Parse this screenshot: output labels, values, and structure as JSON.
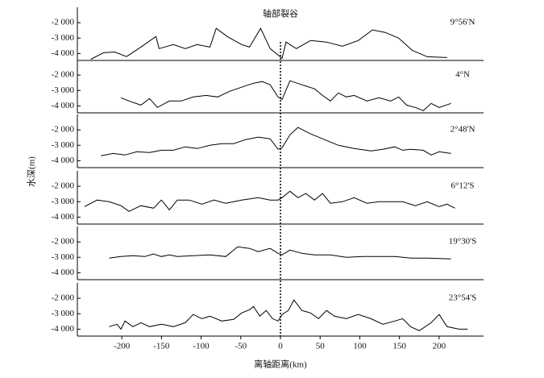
{
  "chart_data": {
    "type": "line",
    "annotation": "轴部裂谷",
    "xlabel": "离轴距离(km)",
    "ylabel": "水深(m)",
    "xlim": [
      -256,
      256
    ],
    "xticks": [
      -200,
      -150,
      -100,
      -50,
      0,
      50,
      100,
      150,
      200
    ],
    "ylim": [
      -4450,
      -1000
    ],
    "yticks": [
      {
        "value": -2000,
        "label": "-2 000"
      },
      {
        "value": -3000,
        "label": "-3 000"
      },
      {
        "value": -4000,
        "label": "-4 000"
      }
    ],
    "series": [
      {
        "name": "9°56'N",
        "color": "#000000",
        "x": [
          -239,
          -223,
          -209,
          -194,
          -176,
          -157,
          -153,
          -135,
          -120,
          -105,
          -89,
          -81,
          -67,
          -49,
          -39,
          -25,
          -13,
          -3,
          2,
          7,
          20,
          38,
          58,
          78,
          98,
          116,
          132,
          149,
          166,
          185,
          210
        ],
        "values": [
          -4370,
          -3950,
          -3900,
          -4200,
          -3580,
          -2900,
          -3680,
          -3420,
          -3680,
          -3420,
          -3580,
          -2370,
          -2900,
          -3420,
          -3580,
          -2370,
          -3680,
          -4100,
          -4310,
          -3260,
          -3680,
          -3160,
          -3260,
          -3530,
          -3160,
          -2470,
          -2630,
          -3000,
          -3790,
          -4210,
          -4260
        ]
      },
      {
        "name": "4°N",
        "color": "#000000",
        "x": [
          -201,
          -191,
          -176,
          -165,
          -155,
          -140,
          -125,
          -110,
          -94,
          -79,
          -64,
          -49,
          -34,
          -23,
          -13,
          -3,
          2,
          12,
          27,
          43,
          53,
          63,
          73,
          83,
          93,
          109,
          124,
          139,
          149,
          159,
          170,
          180,
          190,
          200,
          215
        ],
        "values": [
          -3470,
          -3680,
          -3950,
          -3530,
          -4100,
          -3680,
          -3680,
          -3420,
          -3320,
          -3420,
          -3050,
          -2790,
          -2530,
          -2420,
          -2630,
          -3420,
          -3580,
          -2370,
          -2630,
          -2890,
          -3320,
          -3680,
          -3160,
          -3420,
          -3320,
          -3680,
          -3470,
          -3680,
          -3420,
          -3950,
          -4100,
          -4310,
          -3840,
          -4100,
          -3840
        ]
      },
      {
        "name": "2°48'N",
        "color": "#000000",
        "x": [
          -226,
          -211,
          -196,
          -181,
          -165,
          -150,
          -135,
          -120,
          -105,
          -89,
          -74,
          -59,
          -44,
          -28,
          -13,
          -3,
          2,
          12,
          22,
          38,
          53,
          73,
          93,
          114,
          129,
          144,
          154,
          164,
          180,
          190,
          200,
          215
        ],
        "values": [
          -3680,
          -3530,
          -3630,
          -3420,
          -3470,
          -3320,
          -3320,
          -3100,
          -3210,
          -3000,
          -2890,
          -2890,
          -2630,
          -2470,
          -2580,
          -3260,
          -3160,
          -2320,
          -1840,
          -2260,
          -2580,
          -3000,
          -3210,
          -3370,
          -3260,
          -3100,
          -3320,
          -3260,
          -3320,
          -3630,
          -3420,
          -3530
        ]
      },
      {
        "name": "6°12'S",
        "color": "#000000",
        "x": [
          -247,
          -231,
          -216,
          -201,
          -191,
          -176,
          -160,
          -150,
          -140,
          -130,
          -115,
          -99,
          -84,
          -69,
          -49,
          -28,
          -13,
          -3,
          2,
          12,
          22,
          32,
          43,
          53,
          63,
          78,
          93,
          109,
          124,
          139,
          154,
          170,
          185,
          200,
          210,
          220
        ],
        "values": [
          -3320,
          -2890,
          -3000,
          -3260,
          -3630,
          -3260,
          -3420,
          -2890,
          -3530,
          -2890,
          -2890,
          -3160,
          -2890,
          -3100,
          -2890,
          -2740,
          -2890,
          -2890,
          -2740,
          -2320,
          -2740,
          -2470,
          -2890,
          -2470,
          -3100,
          -3000,
          -2740,
          -3100,
          -3000,
          -3000,
          -3000,
          -3260,
          -3000,
          -3320,
          -3160,
          -3420
        ]
      },
      {
        "name": "19°30'S",
        "color": "#000000",
        "x": [
          -216,
          -201,
          -186,
          -171,
          -160,
          -150,
          -140,
          -130,
          -110,
          -89,
          -69,
          -54,
          -39,
          -28,
          -13,
          -3,
          2,
          12,
          27,
          43,
          63,
          83,
          104,
          124,
          144,
          164,
          185,
          215
        ],
        "values": [
          -3050,
          -2950,
          -2890,
          -2950,
          -2790,
          -2950,
          -2840,
          -2950,
          -2890,
          -2840,
          -2950,
          -2320,
          -2420,
          -2630,
          -2420,
          -2740,
          -2840,
          -2530,
          -2740,
          -2840,
          -2840,
          -3000,
          -2950,
          -2950,
          -2950,
          -3050,
          -3050,
          -3100
        ]
      },
      {
        "name": "23°54'S",
        "color": "#000000",
        "x": [
          -216,
          -206,
          -201,
          -196,
          -186,
          -176,
          -165,
          -150,
          -135,
          -120,
          -110,
          -99,
          -89,
          -74,
          -59,
          -49,
          -39,
          -34,
          -26,
          -18,
          -10,
          -3,
          2,
          10,
          17,
          27,
          38,
          48,
          58,
          68,
          83,
          98,
          114,
          129,
          144,
          154,
          164,
          175,
          190,
          200,
          210,
          225,
          236
        ],
        "values": [
          -3840,
          -3680,
          -4000,
          -3470,
          -3840,
          -3580,
          -3840,
          -3680,
          -3840,
          -3580,
          -3050,
          -3320,
          -3160,
          -3470,
          -3370,
          -2950,
          -2740,
          -2530,
          -3160,
          -2790,
          -3320,
          -3470,
          -3050,
          -2790,
          -2110,
          -2790,
          -2950,
          -3320,
          -2790,
          -3160,
          -3320,
          -3050,
          -3320,
          -3680,
          -3470,
          -3320,
          -3840,
          -4100,
          -3580,
          -3050,
          -3840,
          -4000,
          -4000
        ]
      }
    ]
  }
}
